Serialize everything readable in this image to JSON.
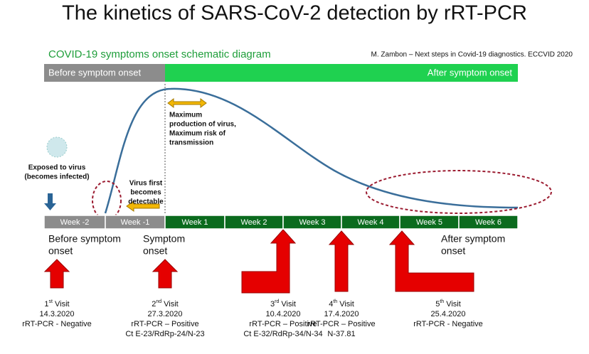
{
  "title": "The kinetics of SARS-CoV-2 detection by rRT-PCR",
  "subtitle": "COVID-19 symptoms onset schematic diagram",
  "citation": "M. Zambon – Next steps in Covid-19 diagnostics. ECCVID 2020",
  "phase_bar": {
    "before": "Before symptom onset",
    "after": "After symptom onset"
  },
  "annotations": {
    "peak": [
      "Maximum",
      "production of virus,",
      "Maximum risk of",
      "transmission"
    ],
    "exposed": [
      "Exposed to virus",
      "(becomes infected)"
    ],
    "detectable": [
      "Virus first",
      "becomes",
      "detectable"
    ]
  },
  "weeks": [
    "Week -2",
    "Week -1",
    "Week 1",
    "Week 2",
    "Week 3",
    "Week 4",
    "Week 5",
    "Week 6"
  ],
  "phases": {
    "before": [
      "Before symptom",
      "onset"
    ],
    "onset": [
      "Symptom",
      "onset"
    ],
    "after": [
      "After symptom",
      "onset"
    ]
  },
  "visits": [
    {
      "ordinal": "1",
      "suffix": "st",
      "label": "Visit",
      "lines": [
        "14.3.2020",
        "rRT-PCR - Negative"
      ]
    },
    {
      "ordinal": "2",
      "suffix": "nd",
      "label": "Visit",
      "lines": [
        "27.3.2020",
        "rRT-PCR – Positive",
        "Ct E-23/RdRp-24/N-23"
      ]
    },
    {
      "ordinal": "3",
      "suffix": "rd",
      "label": "Visit",
      "lines": [
        "10.4.2020",
        "rRT-PCR – Positive",
        "Ct E-32/RdRp-34/N-34"
      ]
    },
    {
      "ordinal": "4",
      "suffix": "th",
      "label": "Visit",
      "lines": [
        "17.4.2020",
        "rRT-PCR – Positive",
        "N-37.81"
      ]
    },
    {
      "ordinal": "5",
      "suffix": "th",
      "label": "Visit",
      "lines": [
        "25.4.2020",
        "rRT-PCR - Negative"
      ]
    }
  ]
}
